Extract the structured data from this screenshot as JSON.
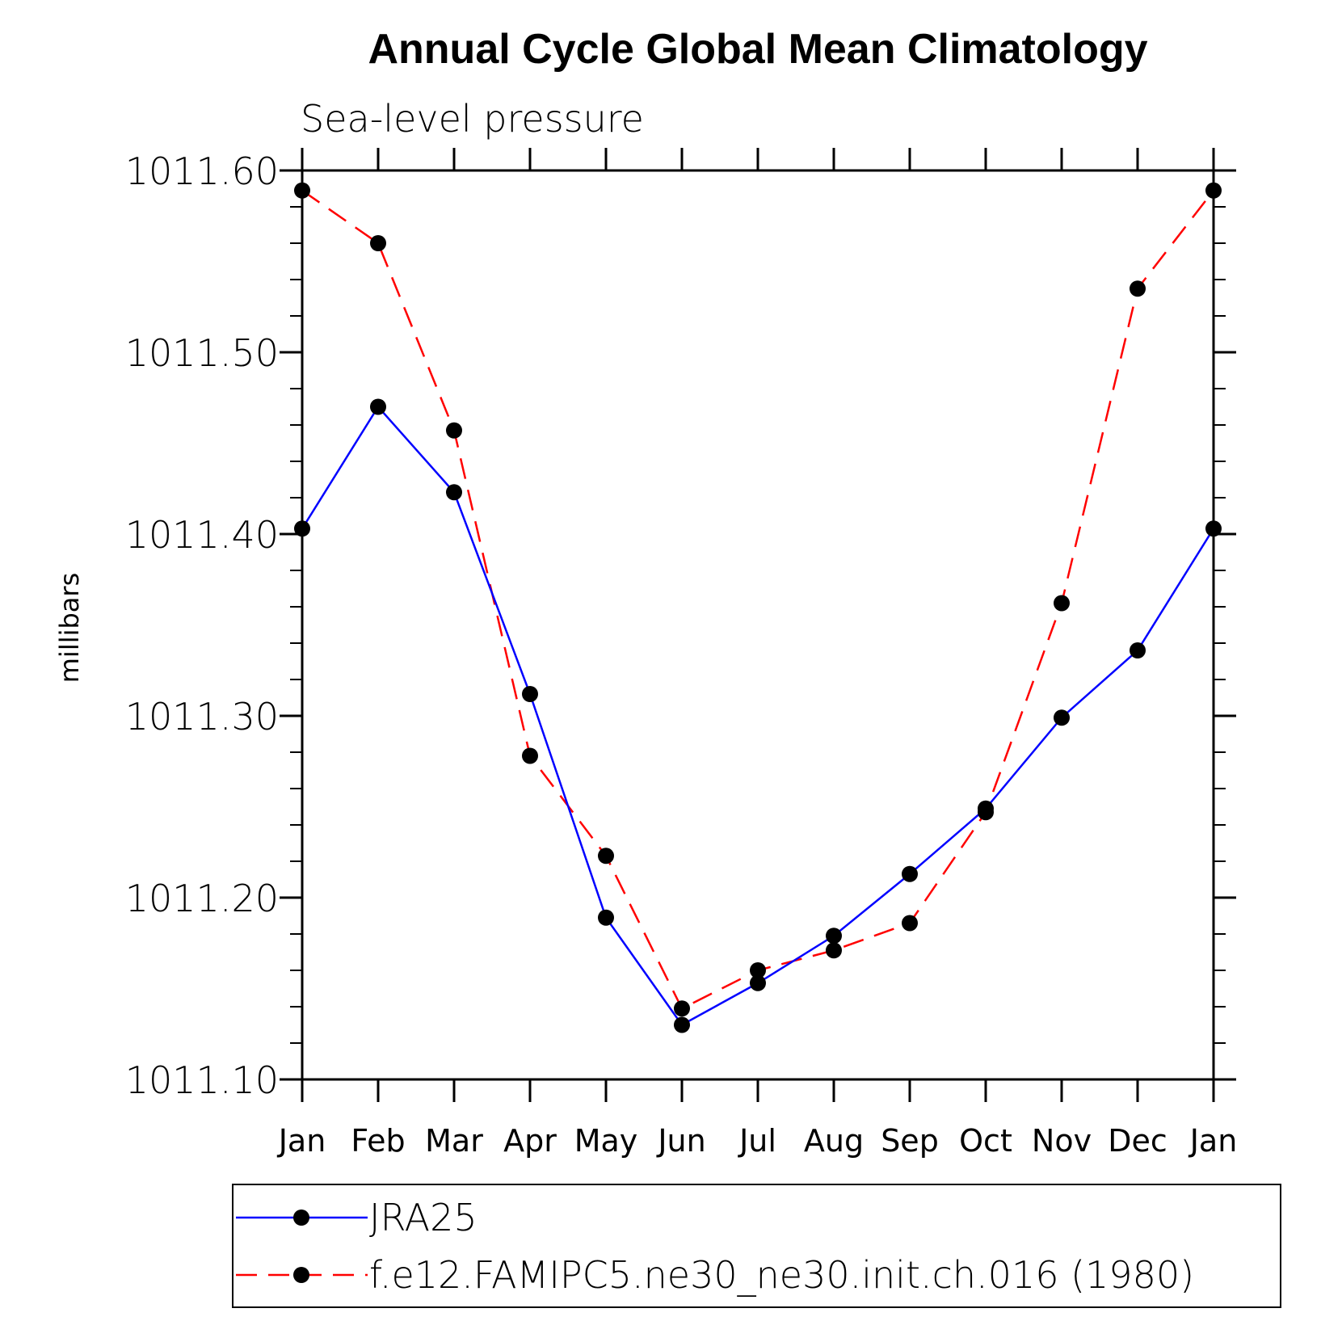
{
  "chart_data": {
    "type": "line",
    "title": "Annual Cycle Global Mean Climatology",
    "subtitle": "Sea-level pressure",
    "xlabel": "",
    "ylabel": "millibars",
    "categories": [
      "Jan",
      "Feb",
      "Mar",
      "Apr",
      "May",
      "Jun",
      "Jul",
      "Aug",
      "Sep",
      "Oct",
      "Nov",
      "Dec",
      "Jan"
    ],
    "ylim": [
      1011.1,
      1011.6
    ],
    "yticks": [
      "1011.10",
      "1011.20",
      "1011.30",
      "1011.40",
      "1011.50",
      "1011.60"
    ],
    "ytick_values": [
      1011.1,
      1011.2,
      1011.3,
      1011.4,
      1011.5,
      1011.6
    ],
    "grid": false,
    "legend_position": "bottom",
    "series": [
      {
        "name": "JRA25",
        "color": "#0000ff",
        "dash": "solid",
        "marker": "filled-circle",
        "values": [
          1011.403,
          1011.47,
          1011.423,
          1011.312,
          1011.189,
          1011.13,
          1011.153,
          1011.179,
          1011.213,
          1011.249,
          1011.299,
          1011.336,
          1011.403
        ]
      },
      {
        "name": "f.e12.FAMIPC5.ne30_ne30.init.ch.016 (1980)",
        "color": "#ff0000",
        "dash": "dashed",
        "marker": "filled-circle",
        "values": [
          1011.589,
          1011.56,
          1011.457,
          1011.278,
          1011.223,
          1011.139,
          1011.16,
          1011.171,
          1011.186,
          1011.247,
          1011.362,
          1011.535,
          1011.589
        ]
      }
    ]
  }
}
